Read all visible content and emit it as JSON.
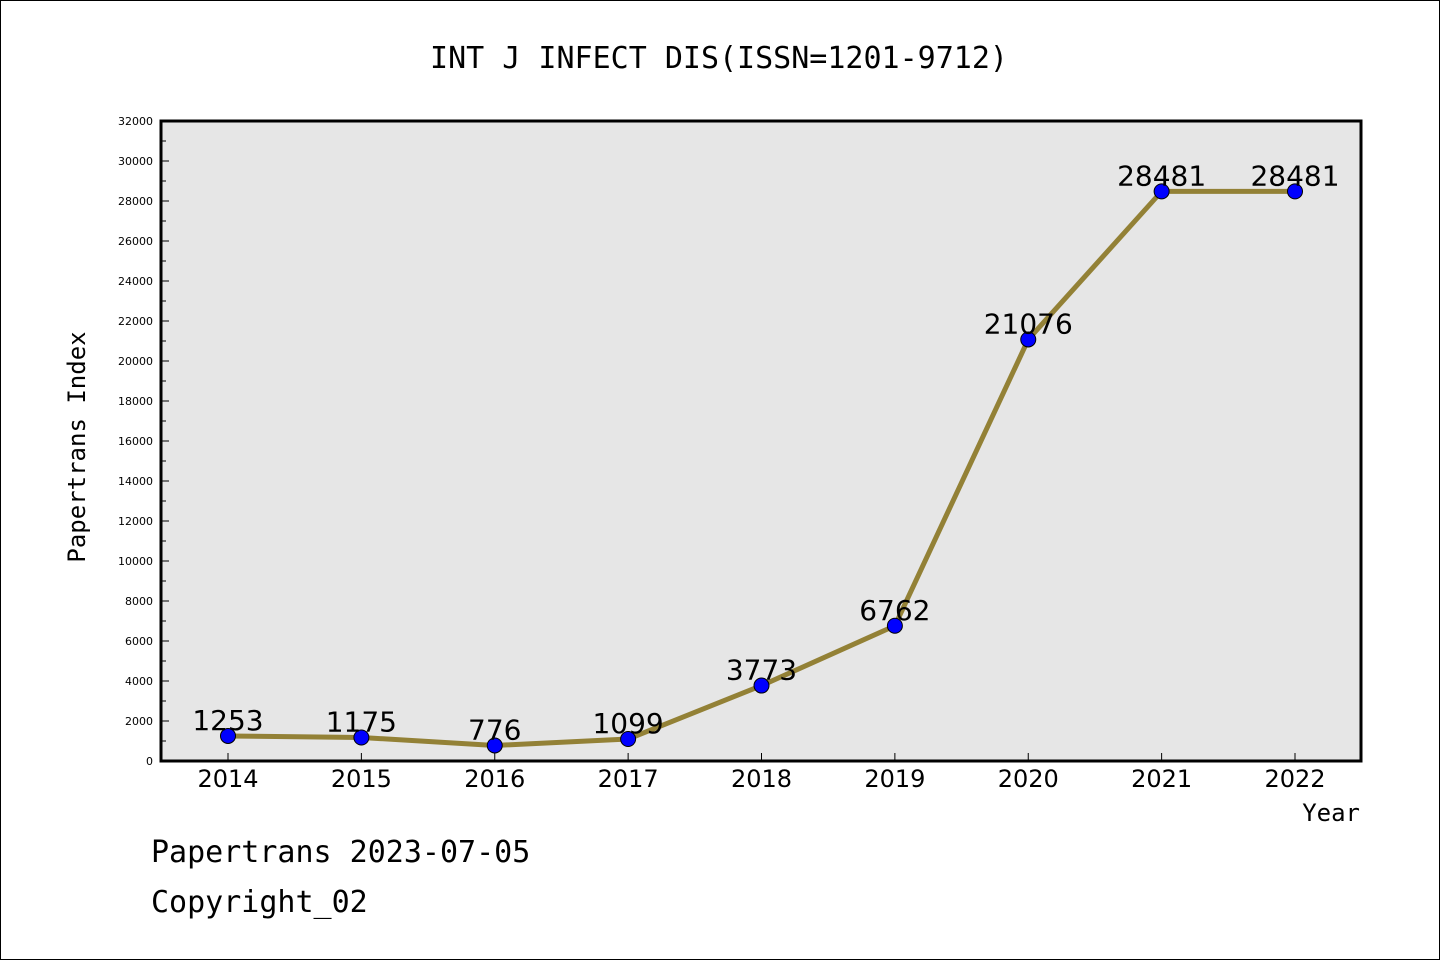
{
  "chart_data": {
    "type": "line",
    "title": "INT J INFECT DIS(ISSN=1201-9712)",
    "xlabel": "Year",
    "ylabel": "Papertrans Index",
    "categories": [
      "2014",
      "2015",
      "2016",
      "2017",
      "2018",
      "2019",
      "2020",
      "2021",
      "2022"
    ],
    "series": [
      {
        "values": [
          1253,
          1175,
          776,
          1099,
          3773,
          6762,
          21076,
          28481,
          28481
        ],
        "line_color": "#938136",
        "marker_color": "#0000ff"
      }
    ],
    "ylim": [
      0,
      32000
    ],
    "yticks": [
      0,
      2000,
      4000,
      6000,
      8000,
      10000,
      12000,
      14000,
      16000,
      18000,
      20000,
      22000,
      24000,
      26000,
      28000,
      30000,
      32000
    ],
    "data_labels": [
      "1253",
      "1175",
      "776",
      "1099",
      "3773",
      "6762",
      "21076",
      "28481",
      "28481"
    ],
    "plot_background": "#e6e6e6",
    "grid": false
  },
  "footer": {
    "date_line": "Papertrans 2023-07-05",
    "copyright_line": "Copyright_02"
  }
}
